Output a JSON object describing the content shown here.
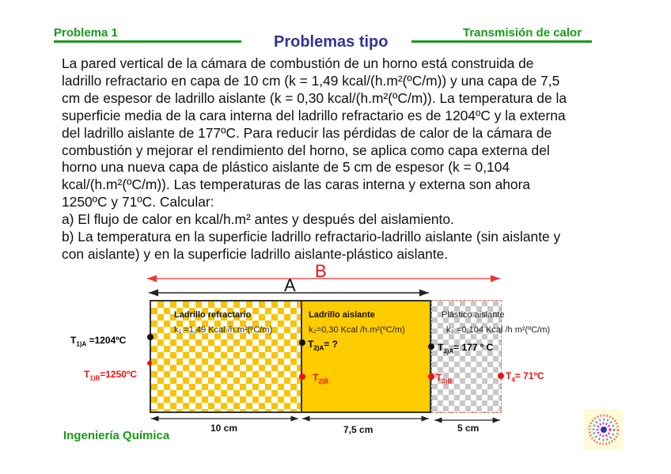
{
  "header": {
    "left": "Problema 1",
    "title": "Problemas tipo",
    "right": "Transmisión de calor"
  },
  "body_lines": [
    "La pared vertical de la cámara de combustión de un horno está construida de",
    "ladrillo refractario en capa de 10 cm (k = 1,49 kcal/(h.m²(ºC/m)) y una capa de 7,5",
    "cm de espesor de ladrillo aislante (k = 0,30 kcal/(h.m²(ºC/m)). La temperatura de la",
    "superficie media de la cara interna del ladrillo refractario es de 1204ºC y la externa",
    "del ladrillo aislante de 177ºC. Para reducir las pérdidas de calor de la cámara de",
    "combustión y mejorar el rendimiento del horno, se aplica como capa externa del",
    "horno una nueva capa de plástico aislante de 5 cm de espesor (k = 0,104",
    "kcal/(h.m²(ºC/m)). Las temperaturas de las caras interna y externa son ahora",
    "1250ºC y 71ºC. Calcular:",
    " a) El flujo de calor en kcal/h.m² antes y después del aislamiento.",
    "b) La temperatura en la superficie ladrillo refractario-ladrillo aislante (sin aislante y",
    "con aislante) y en la superficie ladrillo aislante-plástico aislante."
  ],
  "diagram": {
    "arrow_a": "A",
    "arrow_b": "B",
    "layers": [
      {
        "name": "Ladrillo refractario",
        "k": "k₁ =1,49 Kcal /h.m²(ºC/m)",
        "thickness": "10 cm"
      },
      {
        "name": "Ladrillo aislante",
        "k": "k₂=0,30 Kcal /h.m²(ºC/m)",
        "thickness": "7,5 cm"
      },
      {
        "name": "Plástico aislante",
        "k": "k₃ =0,104 Kcal /h m²(ºC/m)",
        "thickness": "5 cm"
      }
    ],
    "temps": {
      "t1a_main": "T",
      "t1a_sub": "1)A",
      "t1a_val": " =1204ºC",
      "t1b_main": "T",
      "t1b_sub": "1)B",
      "t1b_val": "=1250ºC",
      "t2a_main": "T",
      "t2a_sub": "2)A",
      "t2a_val": "= ?",
      "t2b_main": "T",
      "t2b_sub": "2)B",
      "t3a_main": "T",
      "t3a_sub": "3)A",
      "t3a_val": "= 177 º C",
      "t3b_main": "T",
      "t3b_sub": "3)B",
      "t4_main": "T",
      "t4_sub": "4",
      "t4_val": "= 71ºC"
    },
    "colors": {
      "refractory": "#f8c400",
      "insulating": "#ffcc00",
      "plastic": "#c8c8c8",
      "case_b": "#ee1111"
    }
  },
  "footer": {
    "left": "Ingeniería Química"
  }
}
